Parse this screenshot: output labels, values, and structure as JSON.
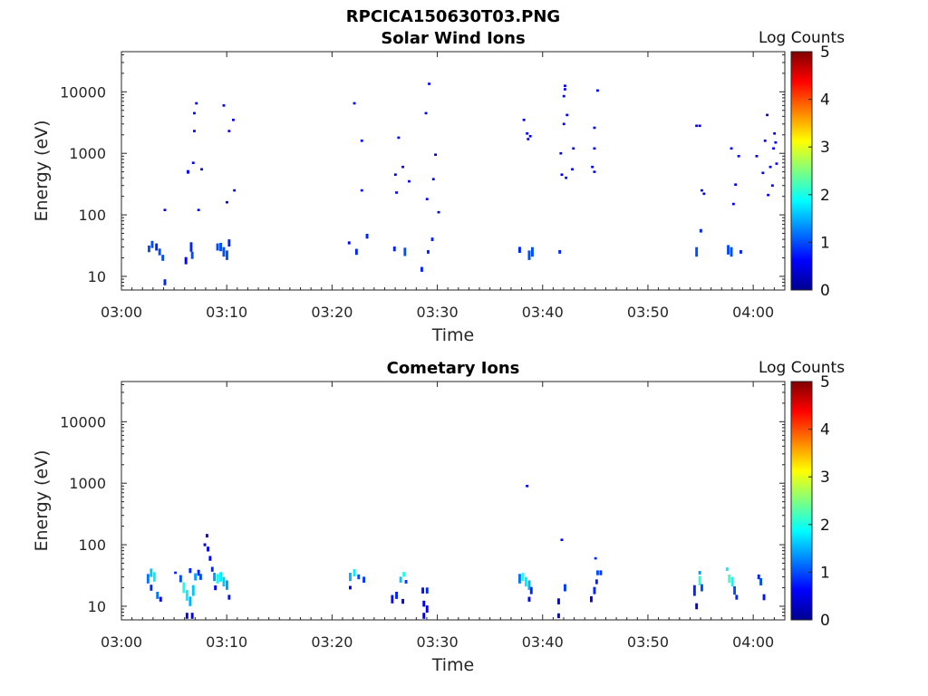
{
  "figure": {
    "title": "RPCICA150630T03.PNG"
  },
  "chart_data": [
    {
      "type": "heatmap",
      "title": "Solar Wind Ions",
      "xlabel": "Time",
      "ylabel": "Energy (eV)",
      "x_ticks": [
        "03:00",
        "03:10",
        "03:20",
        "03:30",
        "03:40",
        "03:50",
        "04:00"
      ],
      "x_range": [
        "03:00",
        "04:03"
      ],
      "y_scale": "log",
      "y_ticks": [
        "10",
        "100",
        "1000",
        "10000"
      ],
      "y_range": [
        6,
        45000
      ],
      "colorbar": {
        "label": "Log Counts",
        "ticks": [
          "0",
          "1",
          "2",
          "3",
          "4",
          "5"
        ],
        "range": [
          0,
          5
        ],
        "colormap": "jet"
      },
      "cells": [
        [
          "03:02.5",
          28,
          28,
          1.0
        ],
        [
          "03:02.8",
          33,
          30,
          1.0
        ],
        [
          "03:03.2",
          30,
          30,
          0.8
        ],
        [
          "03:03.5",
          25,
          28,
          1.0
        ],
        [
          "03:03.8",
          20,
          25,
          1.0
        ],
        [
          "03:04.0",
          120,
          10,
          0.6
        ],
        [
          "03:04.0",
          8,
          25,
          0.8
        ],
        [
          "03:06.0",
          18,
          30,
          0.6
        ],
        [
          "03:06.2",
          500,
          15,
          0.6
        ],
        [
          "03:06.5",
          30,
          40,
          0.8
        ],
        [
          "03:06.6",
          22,
          30,
          1.0
        ],
        [
          "03:06.7",
          700,
          10,
          0.6
        ],
        [
          "03:06.8",
          2300,
          10,
          0.6
        ],
        [
          "03:06.8",
          4500,
          10,
          0.6
        ],
        [
          "03:07.0",
          6500,
          10,
          0.6
        ],
        [
          "03:07.2",
          120,
          10,
          0.6
        ],
        [
          "03:07.5",
          550,
          10,
          0.6
        ],
        [
          "03:09.0",
          30,
          30,
          1.0
        ],
        [
          "03:09.3",
          30,
          35,
          1.0
        ],
        [
          "03:09.6",
          25,
          40,
          1.0
        ],
        [
          "03:09.9",
          22,
          40,
          1.0
        ],
        [
          "03:10.1",
          35,
          30,
          0.8
        ],
        [
          "03:09.6",
          6000,
          10,
          0.6
        ],
        [
          "03:09.9",
          160,
          10,
          0.6
        ],
        [
          "03:10.1",
          2300,
          10,
          0.6
        ],
        [
          "03:10.5",
          3500,
          10,
          0.6
        ],
        [
          "03:10.6",
          250,
          10,
          0.6
        ],
        [
          "03:21.5",
          35,
          12,
          0.6
        ],
        [
          "03:22.0",
          6500,
          10,
          0.6
        ],
        [
          "03:22.2",
          25,
          25,
          0.8
        ],
        [
          "03:22.7",
          250,
          10,
          0.6
        ],
        [
          "03:22.7",
          1600,
          10,
          0.6
        ],
        [
          "03:23.2",
          45,
          20,
          0.8
        ],
        [
          "03:25.8",
          28,
          20,
          0.8
        ],
        [
          "03:25.9",
          450,
          10,
          0.6
        ],
        [
          "03:26.0",
          230,
          10,
          0.6
        ],
        [
          "03:26.2",
          1800,
          10,
          0.6
        ],
        [
          "03:26.6",
          600,
          10,
          0.6
        ],
        [
          "03:26.8",
          25,
          35,
          1.0
        ],
        [
          "03:27.2",
          350,
          10,
          0.6
        ],
        [
          "03:28.4",
          13,
          20,
          0.8
        ],
        [
          "03:28.8",
          4500,
          10,
          0.6
        ],
        [
          "03:29.1",
          13500,
          10,
          0.6
        ],
        [
          "03:28.9",
          180,
          10,
          0.6
        ],
        [
          "03:29.0",
          25,
          15,
          0.8
        ],
        [
          "03:29.4",
          40,
          15,
          0.8
        ],
        [
          "03:29.5",
          380,
          10,
          0.6
        ],
        [
          "03:29.7",
          950,
          10,
          0.6
        ],
        [
          "03:30.0",
          110,
          10,
          0.6
        ],
        [
          "03:37.7",
          27,
          25,
          0.8
        ],
        [
          "03:38.1",
          3500,
          10,
          0.6
        ],
        [
          "03:38.4",
          2100,
          10,
          0.6
        ],
        [
          "03:38.5",
          1700,
          10,
          0.6
        ],
        [
          "03:38.6",
          22,
          40,
          1.0
        ],
        [
          "03:38.9",
          25,
          40,
          1.0
        ],
        [
          "03:38.7",
          1900,
          10,
          0.6
        ],
        [
          "03:41.5",
          25,
          15,
          0.8
        ],
        [
          "03:41.6",
          1000,
          10,
          0.6
        ],
        [
          "03:41.7",
          450,
          10,
          0.6
        ],
        [
          "03:41.9",
          3000,
          10,
          0.6
        ],
        [
          "03:41.9",
          8500,
          10,
          0.6
        ],
        [
          "03:42.0",
          11000,
          10,
          0.6
        ],
        [
          "03:42.0",
          12500,
          10,
          0.6
        ],
        [
          "03:42.1",
          400,
          10,
          0.6
        ],
        [
          "03:42.2",
          4200,
          10,
          0.6
        ],
        [
          "03:42.7",
          550,
          10,
          0.6
        ],
        [
          "03:42.8",
          1200,
          10,
          0.6
        ],
        [
          "03:44.6",
          600,
          10,
          0.6
        ],
        [
          "03:44.8",
          1200,
          10,
          0.6
        ],
        [
          "03:44.8",
          500,
          10,
          0.6
        ],
        [
          "03:44.8",
          2600,
          10,
          0.6
        ],
        [
          "03:45.1",
          10500,
          10,
          0.6
        ],
        [
          "03:54.5",
          2800,
          10,
          0.6
        ],
        [
          "03:54.8",
          2800,
          10,
          0.6
        ],
        [
          "03:54.5",
          25,
          40,
          1.0
        ],
        [
          "03:54.9",
          55,
          15,
          0.8
        ],
        [
          "03:55.0",
          250,
          10,
          0.6
        ],
        [
          "03:55.2",
          220,
          10,
          0.6
        ],
        [
          "03:57.5",
          27,
          40,
          1.0
        ],
        [
          "03:57.8",
          25,
          40,
          1.0
        ],
        [
          "03:57.8",
          1200,
          10,
          0.6
        ],
        [
          "03:58.0",
          150,
          10,
          0.6
        ],
        [
          "03:58.2",
          310,
          10,
          0.6
        ],
        [
          "03:58.5",
          900,
          10,
          0.6
        ],
        [
          "03:58.7",
          25,
          15,
          0.8
        ],
        [
          "04:00.8",
          480,
          10,
          0.6
        ],
        [
          "04:01.0",
          1600,
          10,
          0.6
        ],
        [
          "04:01.2",
          4200,
          10,
          0.6
        ],
        [
          "04:01.3",
          210,
          10,
          0.6
        ],
        [
          "04:01.5",
          600,
          10,
          0.6
        ],
        [
          "04:01.8",
          1200,
          10,
          0.6
        ],
        [
          "04:01.9",
          2100,
          10,
          0.6
        ],
        [
          "04:02.0",
          1500,
          10,
          0.6
        ],
        [
          "04:02.1",
          680,
          10,
          0.6
        ],
        [
          "04:00.2",
          900,
          10,
          0.6
        ],
        [
          "04:01.7",
          300,
          10,
          0.6
        ]
      ]
    },
    {
      "type": "heatmap",
      "title": "Cometary Ions",
      "xlabel": "Time",
      "ylabel": "Energy (eV)",
      "x_ticks": [
        "03:00",
        "03:10",
        "03:20",
        "03:30",
        "03:40",
        "03:50",
        "04:00"
      ],
      "x_range": [
        "03:00",
        "04:03"
      ],
      "y_scale": "log",
      "y_ticks": [
        "10",
        "100",
        "1000",
        "10000"
      ],
      "y_range": [
        6,
        45000
      ],
      "colorbar": {
        "label": "Log Counts",
        "ticks": [
          "0",
          "1",
          "2",
          "3",
          "4",
          "5"
        ],
        "range": [
          0,
          5
        ],
        "colormap": "jet"
      },
      "cells": [
        [
          "03:02.4",
          28,
          40,
          1.2
        ],
        [
          "03:02.7",
          35,
          35,
          1.6
        ],
        [
          "03:02.7",
          20,
          25,
          0.8
        ],
        [
          "03:03.0",
          30,
          40,
          1.8
        ],
        [
          "03:03.3",
          15,
          30,
          1.2
        ],
        [
          "03:03.6",
          13,
          20,
          0.6
        ],
        [
          "03:05.0",
          35,
          10,
          0.8
        ],
        [
          "03:05.5",
          28,
          30,
          1.0
        ],
        [
          "03:05.8",
          20,
          45,
          2.0
        ],
        [
          "03:06.1",
          15,
          45,
          1.8
        ],
        [
          "03:06.4",
          12,
          40,
          1.5
        ],
        [
          "03:06.7",
          18,
          45,
          1.6
        ],
        [
          "03:06.1",
          7,
          25,
          0.6
        ],
        [
          "03:06.6",
          7,
          25,
          0.6
        ],
        [
          "03:06.4",
          38,
          20,
          0.8
        ],
        [
          "03:06.9",
          30,
          30,
          1.4
        ],
        [
          "03:07.2",
          35,
          25,
          0.8
        ],
        [
          "03:07.4",
          30,
          25,
          1.0
        ],
        [
          "03:07.8",
          100,
          12,
          0.6
        ],
        [
          "03:08.0",
          140,
          15,
          0.6
        ],
        [
          "03:08.1",
          85,
          20,
          0.6
        ],
        [
          "03:08.3",
          60,
          20,
          0.6
        ],
        [
          "03:08.5",
          40,
          20,
          0.8
        ],
        [
          "03:08.7",
          30,
          35,
          1.4
        ],
        [
          "03:09.0",
          28,
          40,
          1.9
        ],
        [
          "03:09.3",
          30,
          40,
          1.8
        ],
        [
          "03:09.6",
          25,
          40,
          1.6
        ],
        [
          "03:09.9",
          22,
          40,
          1.4
        ],
        [
          "03:10.1",
          14,
          20,
          0.7
        ],
        [
          "03:08.8",
          20,
          20,
          0.6
        ],
        [
          "03:21.6",
          30,
          35,
          1.5
        ],
        [
          "03:21.6",
          20,
          15,
          0.6
        ],
        [
          "03:22.0",
          35,
          30,
          1.8
        ],
        [
          "03:22.4",
          30,
          20,
          1.0
        ],
        [
          "03:22.9",
          27,
          25,
          0.9
        ],
        [
          "03:25.6",
          13,
          35,
          0.7
        ],
        [
          "03:26.0",
          15,
          30,
          0.8
        ],
        [
          "03:26.4",
          27,
          25,
          1.6
        ],
        [
          "03:26.7",
          33,
          20,
          2.0
        ],
        [
          "03:26.9",
          25,
          15,
          0.9
        ],
        [
          "03:26.6",
          12,
          20,
          0.6
        ],
        [
          "03:28.5",
          18,
          25,
          0.7
        ],
        [
          "03:28.6",
          11,
          25,
          0.5
        ],
        [
          "03:28.6",
          7,
          25,
          0.4
        ],
        [
          "03:28.9",
          9,
          30,
          0.6
        ],
        [
          "03:28.9",
          18,
          25,
          0.8
        ],
        [
          "03:37.7",
          28,
          40,
          1.2
        ],
        [
          "03:38.0",
          30,
          35,
          2.0
        ],
        [
          "03:38.3",
          25,
          40,
          1.8
        ],
        [
          "03:38.6",
          22,
          40,
          1.5
        ],
        [
          "03:38.8",
          18,
          30,
          0.8
        ],
        [
          "03:38.6",
          13,
          20,
          0.6
        ],
        [
          "03:38.4",
          900,
          10,
          0.6
        ],
        [
          "03:41.4",
          12,
          25,
          0.6
        ],
        [
          "03:41.4",
          7,
          20,
          0.6
        ],
        [
          "03:41.7",
          120,
          10,
          0.6
        ],
        [
          "03:42.0",
          20,
          30,
          0.9
        ],
        [
          "03:44.5",
          13,
          25,
          0.6
        ],
        [
          "03:44.8",
          18,
          30,
          0.8
        ],
        [
          "03:45.0",
          25,
          20,
          0.8
        ],
        [
          "03:44.9",
          60,
          10,
          0.8
        ],
        [
          "03:45.1",
          35,
          20,
          1.0
        ],
        [
          "03:45.4",
          35,
          20,
          0.9
        ],
        [
          "03:54.3",
          18,
          45,
          0.8
        ],
        [
          "03:54.5",
          10,
          25,
          0.5
        ],
        [
          "03:54.8",
          26,
          40,
          2.1
        ],
        [
          "03:54.8",
          35,
          15,
          1.4
        ],
        [
          "03:55.0",
          20,
          30,
          1.0
        ],
        [
          "03:57.4",
          40,
          15,
          1.8
        ],
        [
          "03:57.6",
          28,
          35,
          2.2
        ],
        [
          "03:57.9",
          25,
          40,
          1.9
        ],
        [
          "03:58.1",
          18,
          35,
          1.0
        ],
        [
          "03:58.3",
          14,
          20,
          0.8
        ],
        [
          "04:00.4",
          30,
          20,
          0.8
        ],
        [
          "04:00.6",
          25,
          30,
          1.0
        ],
        [
          "04:00.9",
          14,
          25,
          0.7
        ]
      ]
    }
  ]
}
